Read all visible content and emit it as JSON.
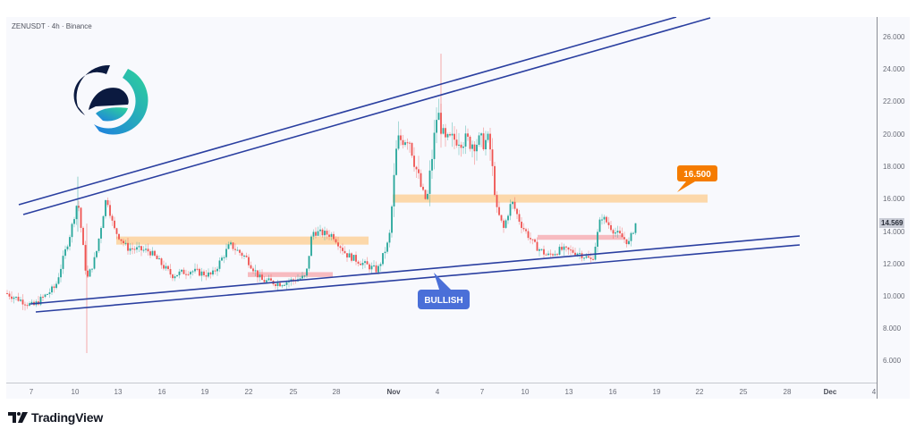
{
  "header": {
    "symbol": "ZENUSDT",
    "interval": "4h",
    "exchange": "Binance",
    "title": "ZENUSDT · 4h · Binance"
  },
  "footer": {
    "brand": "TradingView"
  },
  "colors": {
    "up": "#26a69a",
    "down": "#ef5350",
    "trendline": "#2a3fa0",
    "supply_zone": "#fdd29b",
    "demand_zone": "#f7b0b5",
    "callout_orange": "#f57c00",
    "callout_blue": "#4a6fd8",
    "background": "#f8f9fd"
  },
  "chart_data": {
    "type": "candlestick",
    "title": "ZENUSDT · 4h · Binance",
    "xlabel": "",
    "ylabel": "",
    "ylim": [
      5.0,
      27.0
    ],
    "grid": false,
    "y_ticks": [
      "26.000",
      "24.000",
      "22.000",
      "20.000",
      "18.000",
      "16.000",
      "14.000",
      "12.000",
      "10.000",
      "8.000",
      "6.000"
    ],
    "x_ticks": [
      "7",
      "10",
      "13",
      "16",
      "19",
      "22",
      "25",
      "28",
      "Nov",
      "4",
      "7",
      "10",
      "13",
      "16",
      "19",
      "22",
      "25",
      "28",
      "Dec",
      "4"
    ],
    "last_price": "14.569",
    "approx_price_path": [
      {
        "date": "Oct 7",
        "close": 9.9
      },
      {
        "date": "Oct 9",
        "close": 9.4
      },
      {
        "date": "Oct 10",
        "close": 16.0
      },
      {
        "date": "Oct 11",
        "close": 12.0
      },
      {
        "date": "Oct 12",
        "close": 16.5
      },
      {
        "date": "Oct 13",
        "close": 14.0
      },
      {
        "date": "Oct 16",
        "close": 12.5
      },
      {
        "date": "Oct 19",
        "close": 11.5
      },
      {
        "date": "Oct 22",
        "close": 13.3
      },
      {
        "date": "Oct 24",
        "close": 10.9
      },
      {
        "date": "Oct 27",
        "close": 11.2
      },
      {
        "date": "Oct 28",
        "close": 14.0
      },
      {
        "date": "Oct 31",
        "close": 11.7
      },
      {
        "date": "Nov 2",
        "close": 21.0
      },
      {
        "date": "Nov 3",
        "close": 16.0
      },
      {
        "date": "Nov 4",
        "close": 22.5
      },
      {
        "date": "Nov 7",
        "close": 20.5
      },
      {
        "date": "Nov 8",
        "close": 18.5
      },
      {
        "date": "Nov 9",
        "close": 14.2
      },
      {
        "date": "Nov 10",
        "close": 16.5
      },
      {
        "date": "Nov 12",
        "close": 13.0
      },
      {
        "date": "Nov 14",
        "close": 12.0
      },
      {
        "date": "Nov 15",
        "close": 15.2
      },
      {
        "date": "Nov 17",
        "close": 12.9
      },
      {
        "date": "Nov 17",
        "close": 14.569
      }
    ],
    "annotations": [
      {
        "type": "label",
        "text": "16.500",
        "color": "#f57c00"
      },
      {
        "type": "label",
        "text": "BULLISH",
        "color": "#4a6fd8"
      },
      {
        "type": "zone",
        "name": "supply",
        "low": 13.2,
        "high": 13.7,
        "from": "Oct 13",
        "to": "Oct 31"
      },
      {
        "type": "zone",
        "name": "supply",
        "low": 15.8,
        "high": 16.3,
        "from": "Nov 2",
        "to": "Nov 22"
      },
      {
        "type": "zone",
        "name": "demand",
        "low": 11.2,
        "high": 11.5,
        "from": "Oct 22",
        "to": "Oct 27"
      },
      {
        "type": "zone",
        "name": "demand",
        "low": 13.5,
        "high": 13.8,
        "from": "Nov 10",
        "to": "Nov 17"
      },
      {
        "type": "channel",
        "name": "upper-rising-channel",
        "lines": 2
      },
      {
        "type": "channel",
        "name": "lower-rising-channel",
        "lines": 2
      }
    ]
  },
  "labels": {
    "target": "16.500",
    "bias": "BULLISH"
  }
}
